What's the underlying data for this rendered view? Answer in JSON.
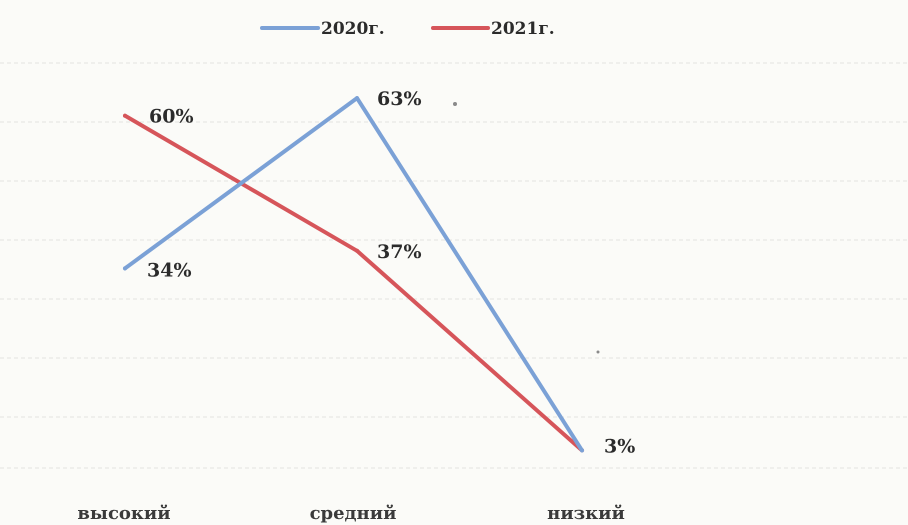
{
  "chart_data": {
    "type": "line",
    "categories": [
      "высокий",
      "средний",
      "низкий"
    ],
    "series": [
      {
        "name": "2020г.",
        "values": [
          34,
          63,
          3
        ],
        "labels": [
          "34%",
          "63%",
          "3%"
        ],
        "color": "#7ba1d6"
      },
      {
        "name": "2021г.",
        "values": [
          60,
          37,
          3
        ],
        "labels": [
          "60%",
          "37%",
          ""
        ],
        "color": "#d6555a"
      }
    ],
    "ylim": [
      0,
      70
    ],
    "grid": true,
    "legend_position": "top-center",
    "xlabel": "",
    "ylabel": ""
  }
}
